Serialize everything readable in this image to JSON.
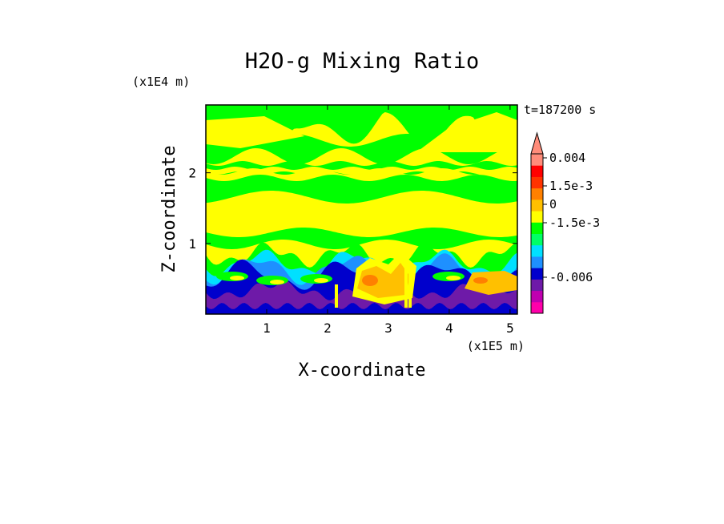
{
  "chart_data": {
    "type": "heatmap",
    "title": "H2O-g Mixing Ratio",
    "xlabel": "X-coordinate",
    "ylabel": "Z-coordinate",
    "x_unit_label": "(x1E5 m)",
    "y_unit_label": "(x1E4 m)",
    "time_label": "t=187200 s",
    "xlim": [
      0,
      5.12
    ],
    "ylim": [
      0,
      2.96
    ],
    "x_ticks": [
      {
        "value": 1,
        "label": "1"
      },
      {
        "value": 2,
        "label": "2"
      },
      {
        "value": 3,
        "label": "3"
      },
      {
        "value": 4,
        "label": "4"
      },
      {
        "value": 5,
        "label": "5"
      }
    ],
    "y_ticks": [
      {
        "value": 1,
        "label": "1"
      },
      {
        "value": 2,
        "label": "2"
      }
    ],
    "colorbar": {
      "levels": [
        {
          "color": "#ff00aa"
        },
        {
          "color": "#c000b0"
        },
        {
          "color": "#6e1aa8"
        },
        {
          "color": "#0000cc"
        },
        {
          "color": "#1e90ff"
        },
        {
          "color": "#00e0ff"
        },
        {
          "color": "#00ff66"
        },
        {
          "color": "#00ff00"
        },
        {
          "color": "#ffff00"
        },
        {
          "color": "#ffc000"
        },
        {
          "color": "#ff8000"
        },
        {
          "color": "#ff3300"
        },
        {
          "color": "#ff0000"
        },
        {
          "color": "#ff8c7a"
        }
      ],
      "labels": [
        {
          "text": "0.004",
          "value": 0.004
        },
        {
          "text": "1.5e-3",
          "value": 0.0015
        },
        {
          "text": "0",
          "value": 0
        },
        {
          "text": "-1.5e-3",
          "value": -0.0015
        },
        {
          "text": "-0.006",
          "value": -0.006
        }
      ],
      "extend": "max"
    },
    "regions": [
      {
        "name": "lower-boundary-purple",
        "color": "#6e1aa8",
        "z_range": [
          0,
          0.3
        ]
      },
      {
        "name": "lower-wavy-band",
        "colors": [
          "#0000cc",
          "#00e0ff",
          "#00ff00"
        ],
        "z_range": [
          0.3,
          0.95
        ]
      },
      {
        "name": "warm-anomaly-core",
        "color": "#ffc000",
        "x_range": [
          2.3,
          3.4
        ],
        "z_range": [
          0.2,
          0.75
        ]
      },
      {
        "name": "mid-level-yellow",
        "color": "#ffff00",
        "z_range": [
          0.95,
          1.7
        ]
      },
      {
        "name": "green-bands",
        "color": "#00ff00",
        "z_range": [
          1.7,
          2.3
        ]
      },
      {
        "name": "upper-yellow",
        "color": "#ffff00",
        "z_range": [
          2.3,
          2.96
        ]
      }
    ]
  }
}
